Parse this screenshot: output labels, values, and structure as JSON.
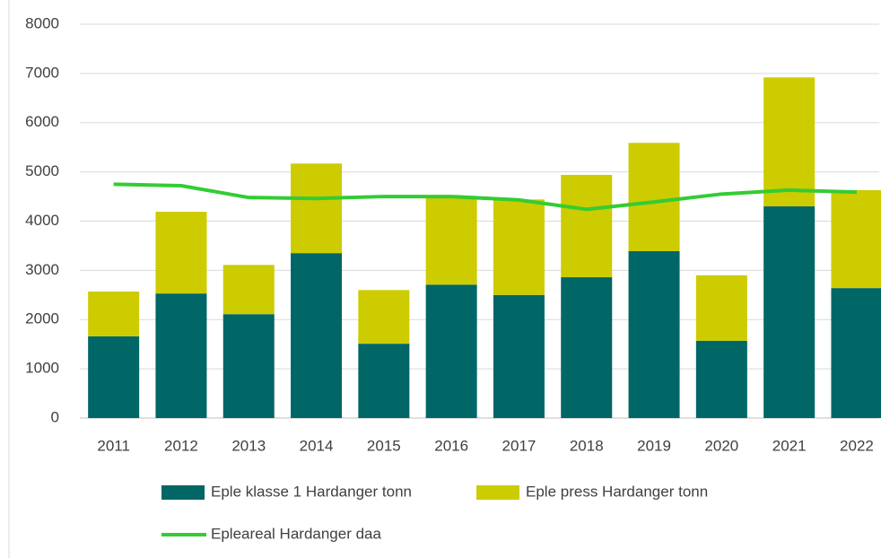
{
  "chart_data": {
    "type": "bar",
    "stacked": true,
    "categories": [
      "2011",
      "2012",
      "2013",
      "2014",
      "2015",
      "2016",
      "2017",
      "2018",
      "2019",
      "2020",
      "2021",
      "2022"
    ],
    "series": [
      {
        "name": "Eple klasse 1 Hardanger tonn",
        "color": "#006666",
        "type": "bar",
        "values": [
          1660,
          2530,
          2110,
          3350,
          1510,
          2710,
          2500,
          2860,
          3390,
          1570,
          4300,
          2640
        ]
      },
      {
        "name": "Eple press Hardanger tonn",
        "color": "#cccc00",
        "type": "bar",
        "values": [
          910,
          1660,
          1000,
          1820,
          1090,
          1770,
          1940,
          2080,
          2200,
          1330,
          2620,
          1990
        ]
      },
      {
        "name": "Epleareal Hardanger daa",
        "color": "#33cc33",
        "type": "line",
        "values": [
          4750,
          4720,
          4480,
          4460,
          4500,
          4500,
          4430,
          4240,
          4390,
          4550,
          4630,
          4590
        ]
      }
    ],
    "ylim": [
      0,
      8000
    ],
    "yticks": [
      0,
      1000,
      2000,
      3000,
      4000,
      5000,
      6000,
      7000,
      8000
    ],
    "grid": true,
    "legend": "bottom"
  }
}
